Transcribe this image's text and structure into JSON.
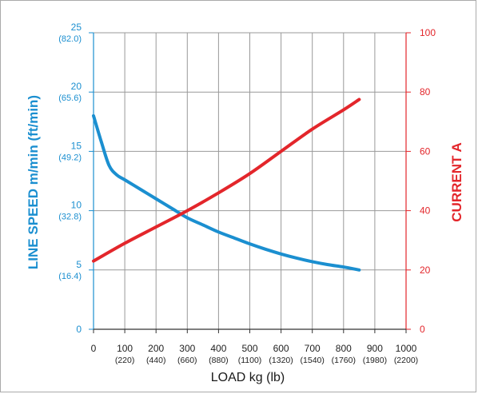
{
  "colors": {
    "speed": "#1b8fd0",
    "current": "#e3262b",
    "grid": "#999999",
    "axis": "#333333",
    "frame": "#aaaaaa"
  },
  "chart_data": {
    "type": "line",
    "xlabel": "LOAD kg (lb)",
    "ylabel_left": "LINE SPEED m/min (ft/min)",
    "ylabel_right": "CURRENT A",
    "xlim": [
      0,
      1000
    ],
    "ylim_left": [
      0,
      25
    ],
    "ylim_right": [
      0,
      100
    ],
    "grid": true,
    "x_ticks": [
      {
        "value": 0,
        "label": "0",
        "sub": ""
      },
      {
        "value": 100,
        "label": "100",
        "sub": "(220)"
      },
      {
        "value": 200,
        "label": "200",
        "sub": "(440)"
      },
      {
        "value": 300,
        "label": "300",
        "sub": "(660)"
      },
      {
        "value": 400,
        "label": "400",
        "sub": "(880)"
      },
      {
        "value": 500,
        "label": "500",
        "sub": "(1100)"
      },
      {
        "value": 600,
        "label": "600",
        "sub": "(1320)"
      },
      {
        "value": 700,
        "label": "700",
        "sub": "(1540)"
      },
      {
        "value": 800,
        "label": "800",
        "sub": "(1760)"
      },
      {
        "value": 900,
        "label": "900",
        "sub": "(1980)"
      },
      {
        "value": 1000,
        "label": "1000",
        "sub": "(2200)"
      }
    ],
    "y_left_ticks": [
      {
        "value": 0,
        "label": "0",
        "sub": ""
      },
      {
        "value": 5,
        "label": "5",
        "sub": "(16.4)"
      },
      {
        "value": 10,
        "label": "10",
        "sub": "(32.8)"
      },
      {
        "value": 15,
        "label": "15",
        "sub": "(49.2)"
      },
      {
        "value": 20,
        "label": "20",
        "sub": "(65.6)"
      },
      {
        "value": 25,
        "label": "25",
        "sub": "(82.0)"
      }
    ],
    "y_right_ticks": [
      {
        "value": 0,
        "label": "0"
      },
      {
        "value": 20,
        "label": "20"
      },
      {
        "value": 40,
        "label": "40"
      },
      {
        "value": 60,
        "label": "60"
      },
      {
        "value": 80,
        "label": "80"
      },
      {
        "value": 100,
        "label": "100"
      }
    ],
    "series": [
      {
        "axis": "left",
        "x": [
          0,
          25,
          50,
          75,
          100,
          150,
          200,
          250,
          300,
          350,
          400,
          450,
          500,
          550,
          600,
          650,
          700,
          750,
          800,
          850
        ],
        "values": [
          18.0,
          15.8,
          13.8,
          13.0,
          12.6,
          11.8,
          11.0,
          10.2,
          9.4,
          8.8,
          8.2,
          7.7,
          7.2,
          6.75,
          6.35,
          6.0,
          5.7,
          5.45,
          5.25,
          5.0
        ]
      },
      {
        "axis": "right",
        "x": [
          0,
          100,
          200,
          300,
          400,
          500,
          600,
          700,
          800,
          850
        ],
        "values": [
          23,
          29,
          34.5,
          40,
          46,
          52.5,
          60,
          67.5,
          74,
          77.5
        ]
      }
    ]
  }
}
